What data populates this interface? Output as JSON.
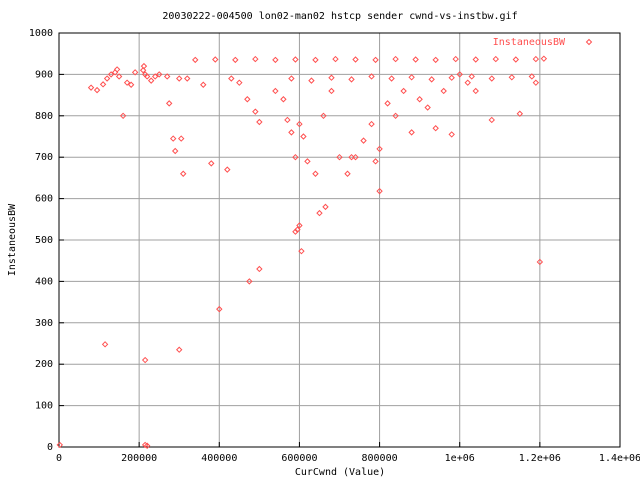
{
  "chart_data": {
    "type": "scatter",
    "title": "20030222-004500 lon02-man02 hstcp sender cwnd-vs-instbw.gif",
    "xlabel": "CurCwnd (Value)",
    "ylabel": "InstaneousBW",
    "xlim": [
      0,
      1400000
    ],
    "ylim": [
      0,
      1000
    ],
    "xticks": [
      0,
      200000,
      400000,
      600000,
      800000,
      {
        "value": 1000000,
        "label": "1e+06"
      },
      {
        "value": 1200000,
        "label": "1.2e+06"
      },
      {
        "value": 1400000,
        "label": "1.4e+06"
      }
    ],
    "yticks": [
      0,
      100,
      200,
      300,
      400,
      500,
      600,
      700,
      800,
      900,
      1000
    ],
    "grid": true,
    "legend": "top-right",
    "series": [
      {
        "name": "InstaneousBW",
        "color": "#ff5050",
        "x": [
          2000,
          115000,
          215000,
          215000,
          220000,
          300000,
          400000,
          475000,
          500000,
          605000,
          595000,
          600000,
          590000,
          650000,
          665000,
          1200000,
          800000,
          80000,
          95000,
          110000,
          120000,
          130000,
          140000,
          145000,
          150000,
          160000,
          170000,
          180000,
          190000,
          210000,
          212000,
          215000,
          220000,
          230000,
          240000,
          250000,
          270000,
          275000,
          285000,
          290000,
          305000,
          310000,
          300000,
          320000,
          380000,
          420000,
          360000,
          340000,
          390000,
          440000,
          490000,
          540000,
          590000,
          640000,
          690000,
          740000,
          790000,
          840000,
          890000,
          940000,
          990000,
          1040000,
          1090000,
          1140000,
          1190000,
          1210000,
          580000,
          630000,
          680000,
          730000,
          780000,
          830000,
          880000,
          930000,
          980000,
          1030000,
          1080000,
          1130000,
          1180000,
          430000,
          450000,
          470000,
          490000,
          500000,
          540000,
          560000,
          570000,
          580000,
          590000,
          600000,
          610000,
          620000,
          640000,
          660000,
          680000,
          700000,
          720000,
          730000,
          740000,
          760000,
          780000,
          790000,
          800000,
          820000,
          840000,
          860000,
          880000,
          900000,
          920000,
          940000,
          960000,
          980000,
          1000000,
          1020000,
          1040000,
          1080000,
          1150000,
          1190000
        ],
        "values": [
          5,
          248,
          210,
          5,
          3,
          235,
          333,
          400,
          430,
          473,
          525,
          535,
          520,
          565,
          580,
          447,
          618,
          868,
          862,
          876,
          890,
          900,
          905,
          912,
          895,
          800,
          880,
          875,
          905,
          910,
          920,
          900,
          895,
          885,
          895,
          900,
          895,
          830,
          745,
          715,
          745,
          660,
          890,
          890,
          685,
          670,
          875,
          935,
          936,
          935,
          937,
          935,
          936,
          935,
          937,
          936,
          935,
          937,
          936,
          935,
          937,
          936,
          937,
          936,
          937,
          938,
          890,
          885,
          892,
          888,
          895,
          890,
          893,
          888,
          892,
          895,
          890,
          893,
          895,
          890,
          880,
          840,
          810,
          785,
          860,
          840,
          790,
          760,
          700,
          780,
          750,
          690,
          660,
          800,
          860,
          700,
          660,
          700,
          700,
          740,
          780,
          690,
          720,
          830,
          800,
          860,
          760,
          840,
          820,
          770,
          860,
          755,
          900,
          880,
          860,
          790,
          805,
          880
        ]
      }
    ]
  }
}
